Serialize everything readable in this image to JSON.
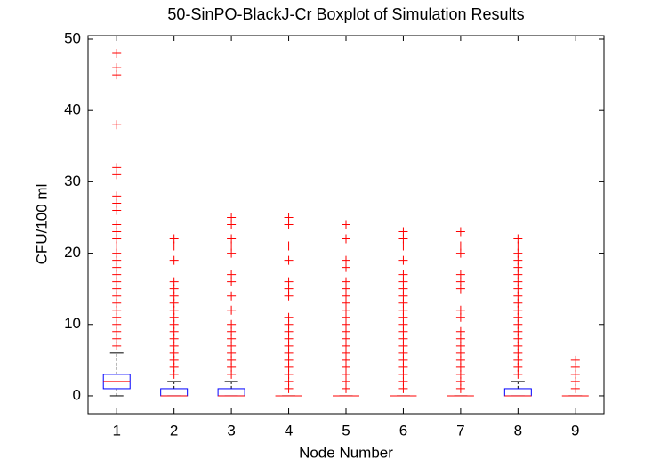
{
  "chart_data": {
    "type": "boxplot",
    "title": "50-SinPO-BlackJ-Cr Boxplot of Simulation Results",
    "x_label": "Node Number",
    "y_label": "CFU/100 ml",
    "categories": [
      "1",
      "2",
      "3",
      "4",
      "5",
      "6",
      "7",
      "8",
      "9"
    ],
    "ylim": [
      -2.5,
      50.5
    ],
    "yticks": [
      0,
      10,
      20,
      30,
      40,
      50
    ],
    "box_color": "#0000ff",
    "median_color": "#ff0000",
    "whisker_color": "#000000",
    "outlier_color": "#ff0000",
    "boxes": [
      {
        "low": 0,
        "q1": 1,
        "median": 2,
        "q3": 3,
        "high": 6,
        "outliers": [
          7,
          8,
          9,
          10,
          11,
          12,
          13,
          14,
          15,
          16,
          17,
          18,
          19,
          20,
          21,
          22,
          23,
          24,
          26,
          27,
          28,
          31,
          32,
          38,
          45,
          46,
          48
        ]
      },
      {
        "low": 0,
        "q1": 0,
        "median": 0,
        "q3": 1,
        "high": 2,
        "outliers": [
          3,
          4,
          5,
          6,
          7,
          8,
          9,
          10,
          11,
          12,
          13,
          14,
          15,
          16,
          19,
          21,
          22
        ]
      },
      {
        "low": 0,
        "q1": 0,
        "median": 0,
        "q3": 1,
        "high": 2,
        "outliers": [
          3,
          4,
          5,
          6,
          7,
          8,
          9,
          10,
          12,
          14,
          16,
          17,
          20,
          21,
          22,
          24,
          25
        ]
      },
      {
        "low": 0,
        "q1": 0,
        "median": 0,
        "q3": 0,
        "high": 0,
        "outliers": [
          1,
          2,
          3,
          4,
          5,
          6,
          7,
          8,
          9,
          10,
          11,
          14,
          15,
          16,
          19,
          21,
          24,
          25
        ]
      },
      {
        "low": 0,
        "q1": 0,
        "median": 0,
        "q3": 0,
        "high": 0,
        "outliers": [
          1,
          2,
          3,
          4,
          5,
          6,
          7,
          8,
          9,
          10,
          11,
          12,
          13,
          14,
          15,
          16,
          18,
          19,
          22,
          24
        ]
      },
      {
        "low": 0,
        "q1": 0,
        "median": 0,
        "q3": 0,
        "high": 0,
        "outliers": [
          1,
          2,
          3,
          4,
          5,
          6,
          7,
          8,
          9,
          10,
          11,
          12,
          13,
          14,
          15,
          16,
          17,
          19,
          21,
          22,
          23
        ]
      },
      {
        "low": 0,
        "q1": 0,
        "median": 0,
        "q3": 0,
        "high": 0,
        "outliers": [
          1,
          2,
          3,
          4,
          5,
          6,
          7,
          8,
          9,
          11,
          12,
          15,
          16,
          17,
          20,
          21,
          23
        ]
      },
      {
        "low": 0,
        "q1": 0,
        "median": 0,
        "q3": 1,
        "high": 2,
        "outliers": [
          3,
          4,
          5,
          6,
          7,
          8,
          9,
          10,
          11,
          12,
          13,
          14,
          15,
          16,
          17,
          18,
          19,
          20,
          21,
          22
        ]
      },
      {
        "low": 0,
        "q1": 0,
        "median": 0,
        "q3": 0,
        "high": 0,
        "outliers": [
          1,
          2,
          3,
          4,
          5
        ]
      }
    ]
  }
}
